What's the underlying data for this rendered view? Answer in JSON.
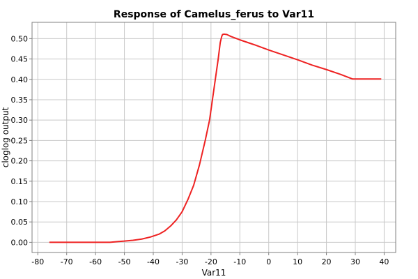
{
  "chart_data": {
    "type": "line",
    "title": "Response of Camelus_ferus to Var11",
    "xlabel": "Var11",
    "ylabel": "cloglog output",
    "xlim": [
      -82,
      44
    ],
    "ylim": [
      -0.025,
      0.54
    ],
    "x_ticks": [
      -80,
      -70,
      -60,
      -50,
      -40,
      -30,
      -20,
      -10,
      0,
      10,
      20,
      30,
      40
    ],
    "y_ticks": [
      0.0,
      0.05,
      0.1,
      0.15,
      0.2,
      0.25,
      0.3,
      0.35,
      0.4,
      0.45,
      0.5
    ],
    "x_tick_labels": [
      "-80",
      "-70",
      "-60",
      "-50",
      "-40",
      "-30",
      "-20",
      "-10",
      "0",
      "10",
      "20",
      "30",
      "40"
    ],
    "y_tick_labels": [
      "0.00",
      "0.05",
      "0.10",
      "0.15",
      "0.20",
      "0.25",
      "0.30",
      "0.35",
      "0.40",
      "0.45",
      "0.50"
    ],
    "grid": true,
    "series": [
      {
        "color": "#ee2222",
        "x": [
          -76,
          -70,
          -60,
          -55,
          -52,
          -50,
          -47,
          -44,
          -41,
          -38,
          -36,
          -34,
          -32,
          -30,
          -28,
          -26,
          -24,
          -22,
          -20.5,
          -19.5,
          -18.5,
          -17.5,
          -16.8,
          -16.3,
          -16,
          -15.5,
          -14.5,
          -13,
          -10,
          -5,
          0,
          5,
          10,
          15,
          20,
          25,
          29,
          32,
          35,
          39
        ],
        "y": [
          0.0,
          0.0,
          0.0,
          0.0,
          0.002,
          0.003,
          0.005,
          0.008,
          0.013,
          0.02,
          0.028,
          0.04,
          0.055,
          0.075,
          0.105,
          0.14,
          0.19,
          0.25,
          0.3,
          0.35,
          0.4,
          0.45,
          0.49,
          0.505,
          0.51,
          0.511,
          0.51,
          0.505,
          0.497,
          0.485,
          0.472,
          0.46,
          0.448,
          0.435,
          0.424,
          0.412,
          0.401,
          0.401,
          0.401,
          0.401
        ]
      }
    ]
  }
}
